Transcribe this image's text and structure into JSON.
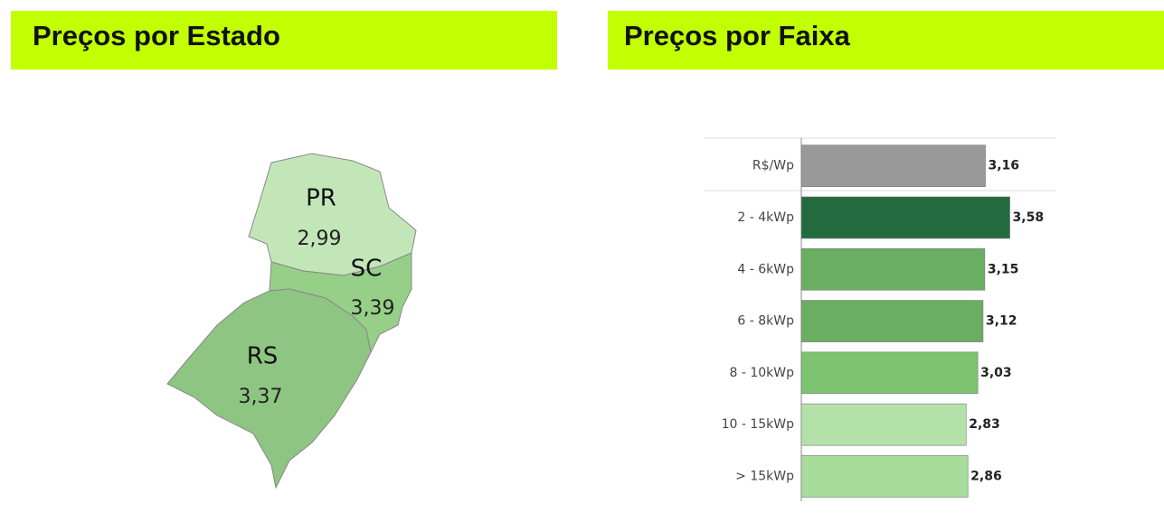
{
  "chart_data": [
    {
      "type": "map",
      "title": "Preços por Estado",
      "categories": [
        "PR",
        "SC",
        "RS"
      ],
      "values": [
        2.99,
        3.39,
        3.37
      ],
      "value_labels": [
        "2,99",
        "3,39",
        "3,37"
      ],
      "colors": [
        "#c3e6b8",
        "#96cf88",
        "#8fc582"
      ]
    },
    {
      "type": "bar",
      "title": "Preços por Faixa",
      "categories": [
        "R$/Wp",
        "2 - 4kWp",
        "4 - 6kWp",
        "6 - 8kWp",
        "8 - 10kWp",
        "10 - 15kWp",
        "> 15kWp"
      ],
      "values": [
        3.16,
        3.58,
        3.15,
        3.12,
        3.03,
        2.83,
        2.86
      ],
      "value_labels": [
        "3,16",
        "3,58",
        "3,15",
        "3,12",
        "3,03",
        "2,83",
        "2,86"
      ],
      "colors": [
        "#999999",
        "#236b3f",
        "#6aae62",
        "#6aae62",
        "#7cc46f",
        "#b4e1a8",
        "#a8dc9b"
      ]
    }
  ]
}
